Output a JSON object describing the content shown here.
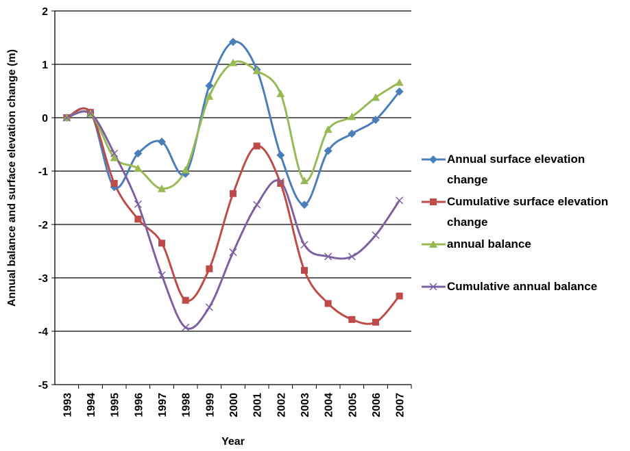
{
  "chart_data": {
    "type": "line",
    "x_label": "Year",
    "y_label": "Annual balance and surface elevation change (m)",
    "categories": [
      "1993",
      "1994",
      "1995",
      "1996",
      "1997",
      "1998",
      "1999",
      "2000",
      "2001",
      "2002",
      "2003",
      "2004",
      "2005",
      "2006",
      "2007"
    ],
    "ylim": [
      -5,
      2
    ],
    "yticks": [
      -5,
      -4,
      -3,
      -2,
      -1,
      0,
      1,
      2
    ],
    "grid": true,
    "legend": "right",
    "series": [
      {
        "name": "Annual surface elevation change",
        "color": "#4a7ebb",
        "marker": "diamond",
        "values": [
          0,
          0.1,
          -1.3,
          -0.67,
          -0.45,
          -1.05,
          0.6,
          1.42,
          0.9,
          -0.7,
          -1.63,
          -0.62,
          -0.3,
          -0.04,
          0.49
        ]
      },
      {
        "name": "Cumulative surface elevation change",
        "color": "#be4b48",
        "marker": "square",
        "values": [
          0,
          0.1,
          -1.23,
          -1.9,
          -2.35,
          -3.42,
          -2.83,
          -1.42,
          -0.53,
          -1.23,
          -2.86,
          -3.48,
          -3.78,
          -3.83,
          -3.34
        ]
      },
      {
        "name": "annual balance",
        "color": "#98b954",
        "marker": "triangle",
        "values": [
          0,
          0.08,
          -0.75,
          -0.95,
          -1.33,
          -0.98,
          0.4,
          1.03,
          0.88,
          0.45,
          -1.18,
          -0.22,
          0.02,
          0.38,
          0.66
        ]
      },
      {
        "name": "Cumulative annual balance",
        "color": "#7d60a0",
        "marker": "x",
        "values": [
          0,
          0.08,
          -0.67,
          -1.62,
          -2.95,
          -3.93,
          -3.55,
          -2.52,
          -1.63,
          -1.2,
          -2.38,
          -2.6,
          -2.6,
          -2.2,
          -1.55
        ]
      }
    ]
  }
}
